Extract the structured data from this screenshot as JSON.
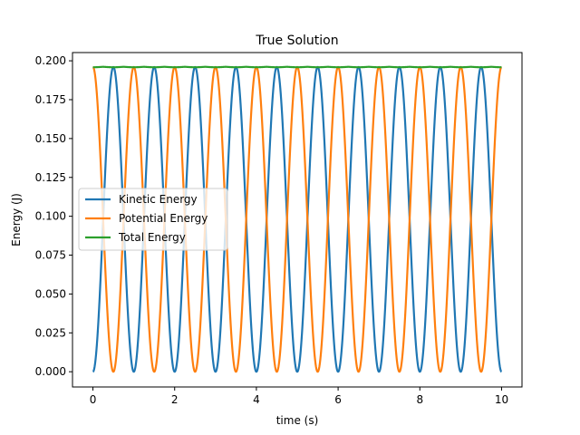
{
  "chart_data": {
    "type": "line",
    "title": "True Solution",
    "xlabel": "time (s)",
    "ylabel": "Energy (J)",
    "xlim": [
      -0.5,
      10.5
    ],
    "ylim": [
      -0.0098,
      0.2053
    ],
    "xticks": [
      0,
      2,
      4,
      6,
      8,
      10
    ],
    "xtick_labels": [
      "0",
      "2",
      "4",
      "6",
      "8",
      "10"
    ],
    "yticks": [
      0.0,
      0.025,
      0.05,
      0.075,
      0.1,
      0.125,
      0.15,
      0.175,
      0.2
    ],
    "ytick_labels": [
      "0.000",
      "0.025",
      "0.050",
      "0.075",
      "0.100",
      "0.125",
      "0.150",
      "0.175",
      "0.200"
    ],
    "grid": false,
    "legend_position": "center-left",
    "total_energy": 0.196,
    "total_energy_ripple": 0.0006,
    "period_s": 1.0,
    "t_start": 0,
    "t_end": 10,
    "series": [
      {
        "name": "Kinetic Energy",
        "color": "#1f77b4",
        "formula": "E*sin^2(pi*t)",
        "peak_times": [
          0.5,
          1.5,
          2.5,
          3.5,
          4.5,
          5.5,
          6.5,
          7.5,
          8.5,
          9.5
        ],
        "peak_value": 0.196,
        "min_value": 0.0
      },
      {
        "name": "Potential Energy",
        "color": "#ff7f0e",
        "formula": "E*cos^2(pi*t)",
        "peak_times": [
          0,
          1,
          2,
          3,
          4,
          5,
          6,
          7,
          8,
          9,
          10
        ],
        "peak_value": 0.196,
        "min_value": 0.0
      },
      {
        "name": "Total Energy",
        "color": "#2ca02c",
        "formula": "~E",
        "value": 0.196
      }
    ]
  }
}
